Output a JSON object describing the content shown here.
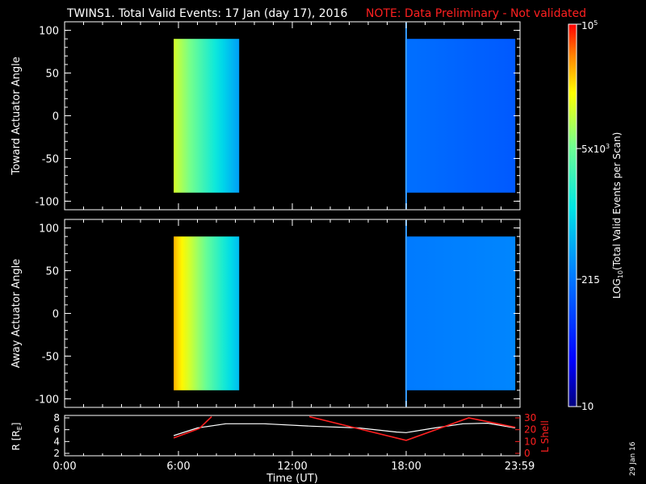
{
  "header": {
    "title": "TWINS1. Total Valid Events: 17 Jan (day  17), 2016",
    "note": "NOTE: Data Preliminary - Not validated"
  },
  "footer": {
    "date_stamp": "29 Jan 16"
  },
  "colors": {
    "note": "#ff2020",
    "lshell": "#ff2020",
    "radius": "#ffffff",
    "background": "#000000"
  },
  "chart_data": [
    {
      "type": "heatmap",
      "panel": "toward",
      "ylabel": "Toward Actuator Angle",
      "xlim": [
        0,
        24
      ],
      "ylim": [
        -110,
        110
      ],
      "yticks": [
        "100",
        "50",
        "0",
        "-50",
        "-100"
      ],
      "ytick_values": [
        100,
        50,
        0,
        -50,
        -100
      ],
      "data_blocks": [
        {
          "t_start": 5.75,
          "t_end": 9.2,
          "angle_min": -90,
          "angle_max": 90,
          "level_start": 0.78,
          "level_end": 0.4
        },
        {
          "t_start": 17.95,
          "t_end": 23.75,
          "angle_min": -90,
          "angle_max": 90,
          "level_start": 0.32,
          "level_end": 0.28
        }
      ]
    },
    {
      "type": "heatmap",
      "panel": "away",
      "ylabel": "Away Actuator Angle",
      "xlim": [
        0,
        24
      ],
      "ylim": [
        -110,
        110
      ],
      "yticks": [
        "100",
        "50",
        "0",
        "-50",
        "-100"
      ],
      "ytick_values": [
        100,
        50,
        0,
        -50,
        -100
      ],
      "data_blocks": [
        {
          "t_start": 5.75,
          "t_end": 9.2,
          "angle_min": -90,
          "angle_max": 90,
          "level_start": 0.88,
          "level_end": 0.45
        },
        {
          "t_start": 17.95,
          "t_end": 23.75,
          "angle_min": -90,
          "angle_max": 90,
          "level_start": 0.34,
          "level_end": 0.36
        }
      ]
    },
    {
      "type": "line",
      "panel": "orbit",
      "ylabel_left": "R [R",
      "ylabel_left_sub": "E",
      "ylabel_left_tail": "]",
      "ylabel_right": "L Shell",
      "ylim_left": [
        2,
        8
      ],
      "ylim_right": [
        0,
        30
      ],
      "yticks_left": [
        "8",
        "6",
        "4",
        "2"
      ],
      "ytick_values_left": [
        8,
        6,
        4,
        2
      ],
      "yticks_right": [
        "30",
        "20",
        "10",
        "0"
      ],
      "ytick_values_right": [
        30,
        20,
        10,
        0
      ],
      "xlabel": "Time (UT)",
      "xticks": [
        "0:00",
        "6:00",
        "12:00",
        "18:00",
        "23:59"
      ],
      "xtick_values": [
        0,
        6,
        12,
        18,
        23.98
      ],
      "xlim": [
        0,
        24
      ],
      "series": [
        {
          "axis": "left",
          "x": [
            5.75,
            7.0,
            8.5,
            10.5,
            13.0,
            15.5,
            17.5,
            18.0,
            19.5,
            21.0,
            22.3,
            23.2,
            23.75
          ],
          "y": [
            5.0,
            6.3,
            7.0,
            7.0,
            6.6,
            6.3,
            5.6,
            5.5,
            6.3,
            7.0,
            7.1,
            6.6,
            6.3
          ]
        },
        {
          "axis": "right",
          "x": [
            5.75,
            7.1,
            7.75
          ],
          "y": [
            13,
            21,
            31
          ]
        },
        {
          "axis": "right",
          "x": [
            12.9,
            18.0,
            21.3,
            23.75
          ],
          "y": [
            31,
            11,
            30,
            22
          ]
        }
      ]
    }
  ],
  "colorbar": {
    "label_pre": "LOG",
    "label_sub": "10",
    "label_post": "(Total Valid Events per Scan)",
    "range": [
      10,
      100000
    ],
    "ticks": [
      {
        "label": "10",
        "value": 10
      },
      {
        "label": "215",
        "value": 215
      },
      {
        "label_base": "5x10",
        "label_exp": "3",
        "value": 5000
      },
      {
        "label_base": "10",
        "label_exp": "5",
        "value": 100000
      }
    ]
  }
}
